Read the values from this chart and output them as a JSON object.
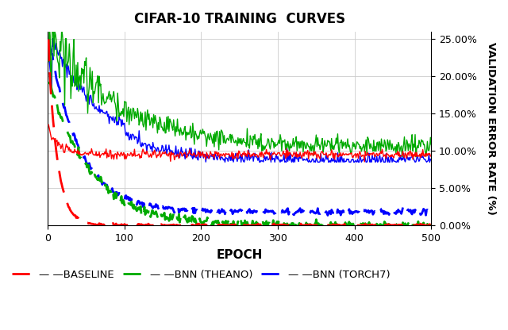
{
  "title": "CIFAR-10 TRAINING  CURVES",
  "xlabel": "EPOCH",
  "ylabel": "VALIDATION ERROR RATE (%)",
  "xlim": [
    0,
    500
  ],
  "ylim": [
    0.0,
    0.26
  ],
  "yticks": [
    0.0,
    0.05,
    0.1,
    0.15,
    0.2,
    0.25
  ],
  "xticks": [
    0,
    100,
    200,
    300,
    400,
    500
  ],
  "colors": {
    "baseline": "#FF0000",
    "bnn_theano": "#00AA00",
    "bnn_torch7": "#0000FF"
  },
  "legend": [
    "— —BASELINE",
    "— —BNN (THEANO)",
    "— —BNN (TORCH7)"
  ],
  "noise_seed": 42
}
